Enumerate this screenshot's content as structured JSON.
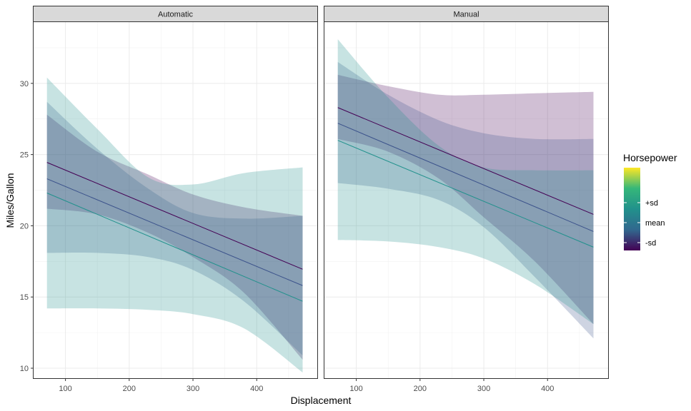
{
  "chart_data": {
    "type": "line",
    "xlabel": "Displacement",
    "ylabel": "Miles/Gallon",
    "xlim": [
      50,
      495
    ],
    "ylim": [
      9.3,
      34.3
    ],
    "x_ticks": [
      100,
      200,
      300,
      400
    ],
    "y_ticks": [
      10,
      15,
      20,
      25,
      30
    ],
    "x_minor_ticks": [
      150,
      250,
      350,
      450
    ],
    "y_minor_ticks": [
      12.5,
      17.5,
      22.5,
      27.5,
      32.5
    ],
    "x_range": [
      71,
      472
    ],
    "grid": true,
    "legend": {
      "title": "Horsepower",
      "position": "right",
      "labels": [
        "+sd",
        "mean",
        "-sd"
      ],
      "colors": [
        "#440154",
        "#31688e",
        "#21918c",
        "#35b779",
        "#fde725"
      ]
    },
    "series_colors": {
      "-sd": "#440154",
      "mean": "#3b528b",
      "+sd": "#21918c"
    },
    "panels": [
      {
        "title": "Automatic",
        "series": [
          {
            "name": "-sd",
            "line": [
              24.45,
              16.95
            ],
            "lower": [
              [
                71,
                21.2
              ],
              [
                150,
                20.8
              ],
              [
                230,
                19.5
              ],
              [
                300,
                17.8
              ],
              [
                380,
                15.3
              ],
              [
                472,
                10.6
              ]
            ],
            "upper": [
              [
                71,
                27.8
              ],
              [
                150,
                25.2
              ],
              [
                230,
                23.6
              ],
              [
                300,
                22.2
              ],
              [
                380,
                21.3
              ],
              [
                472,
                20.7
              ]
            ]
          },
          {
            "name": "mean",
            "line": [
              23.3,
              15.8
            ],
            "lower": [
              [
                71,
                18.1
              ],
              [
                150,
                18.1
              ],
              [
                230,
                17.8
              ],
              [
                300,
                16.9
              ],
              [
                380,
                14.7
              ],
              [
                472,
                10.9
              ]
            ],
            "upper": [
              [
                71,
                28.7
              ],
              [
                150,
                25.4
              ],
              [
                230,
                22.6
              ],
              [
                300,
                20.9
              ],
              [
                380,
                20.5
              ],
              [
                472,
                20.7
              ]
            ]
          },
          {
            "name": "+sd",
            "line": [
              22.3,
              14.7
            ],
            "lower": [
              [
                71,
                14.2
              ],
              [
                150,
                14.2
              ],
              [
                230,
                14.1
              ],
              [
                300,
                13.8
              ],
              [
                380,
                12.8
              ],
              [
                472,
                9.7
              ]
            ],
            "upper": [
              [
                71,
                30.4
              ],
              [
                150,
                26.8
              ],
              [
                230,
                23.4
              ],
              [
                300,
                22.9
              ],
              [
                380,
                23.7
              ],
              [
                472,
                24.1
              ]
            ]
          }
        ]
      },
      {
        "title": "Manual",
        "series": [
          {
            "name": "-sd",
            "line": [
              28.3,
              20.8
            ],
            "lower": [
              [
                71,
                26.1
              ],
              [
                150,
                25.2
              ],
              [
                230,
                23.3
              ],
              [
                300,
                20.6
              ],
              [
                380,
                17.5
              ],
              [
                472,
                13.1
              ]
            ],
            "upper": [
              [
                71,
                30.6
              ],
              [
                150,
                29.8
              ],
              [
                230,
                29.2
              ],
              [
                300,
                29.2
              ],
              [
                380,
                29.3
              ],
              [
                472,
                29.4
              ]
            ]
          },
          {
            "name": "mean",
            "line": [
              27.2,
              19.6
            ],
            "lower": [
              [
                71,
                23.0
              ],
              [
                150,
                22.6
              ],
              [
                230,
                21.8
              ],
              [
                300,
                19.9
              ],
              [
                380,
                16.4
              ],
              [
                472,
                12.1
              ]
            ],
            "upper": [
              [
                71,
                31.5
              ],
              [
                150,
                29.2
              ],
              [
                230,
                27.4
              ],
              [
                300,
                26.5
              ],
              [
                380,
                26.1
              ],
              [
                472,
                26.1
              ]
            ]
          },
          {
            "name": "+sd",
            "line": [
              26.0,
              18.5
            ],
            "lower": [
              [
                71,
                19.0
              ],
              [
                150,
                18.9
              ],
              [
                230,
                18.5
              ],
              [
                300,
                17.7
              ],
              [
                380,
                15.9
              ],
              [
                472,
                13.1
              ]
            ],
            "upper": [
              [
                71,
                33.1
              ],
              [
                150,
                29.0
              ],
              [
                230,
                25.6
              ],
              [
                300,
                24.1
              ],
              [
                380,
                23.9
              ],
              [
                472,
                23.9
              ]
            ]
          }
        ]
      }
    ]
  }
}
